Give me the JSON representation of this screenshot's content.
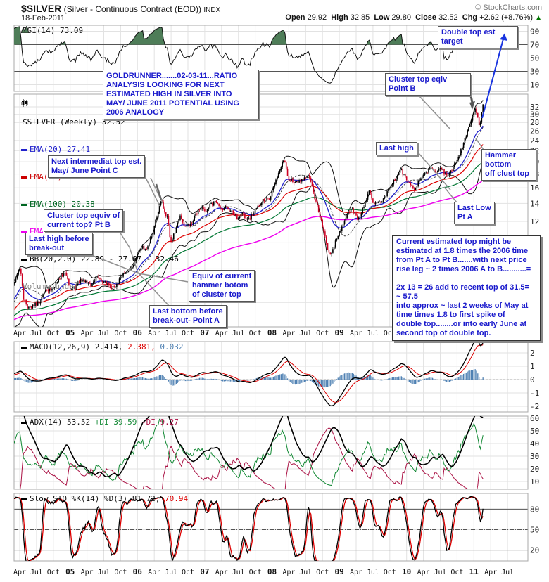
{
  "header": {
    "symbol": "$SILVER",
    "name": " (Silver - Continuous Contract (EOD)) ",
    "exchange": "INDX",
    "credit": "© StockCharts.com",
    "date": "18-Feb-2011",
    "quote": [
      {
        "label": "Open",
        "value": " 29.92  "
      },
      {
        "label": "High",
        "value": " 32.85  "
      },
      {
        "label": "Low",
        "value": " 29.80  "
      },
      {
        "label": "Close",
        "value": " 32.52  "
      },
      {
        "label": "Chg",
        "value": " +2.62 (+8.76%) "
      }
    ],
    "chg_arrow": "▲"
  },
  "legends": {
    "rsi": "RSI(14) 73.09",
    "price_lines": [
      {
        "label": "$SILVER (Weekly) 32.52",
        "color": "#000000"
      },
      {
        "label": "EMA(20) 27.41",
        "color": "#2222cc"
      },
      {
        "label": "EMA(50) 23.56",
        "color": "#cc0000"
      },
      {
        "label": "EMA(100) 20.38",
        "color": "#006622"
      },
      {
        "label": "EMA(200) 17.27",
        "color": "#ee00ee"
      },
      {
        "label": "BB(20,2.0) 22.89 - 27.67 - 32.46",
        "color": "#000000"
      },
      {
        "label": "Volume undef",
        "color": "#888888"
      }
    ],
    "macd": {
      "black": "MACD(12,26,9) 2.414,",
      "red": " 2.381,",
      "blue": " 0.032"
    },
    "adx": {
      "black": "ADX(14) 53.52",
      "green": " +DI 39.59",
      "maroon": " -DI 9.27"
    },
    "sto": {
      "black": "Slow STO %K(14) %D(3) 81.72,",
      "red": " 70.94"
    }
  },
  "axis": {
    "rsi_ticks": [
      "90",
      "70",
      "50",
      "30",
      "10"
    ],
    "price_ticks": [
      "32",
      "30",
      "28",
      "26",
      "24",
      "22",
      "20",
      "18",
      "16",
      "14",
      "12"
    ],
    "macd_ticks": [
      "2",
      "1",
      "0",
      "-1",
      "-2"
    ],
    "adx_ticks": [
      "60",
      "50",
      "40",
      "30",
      "20",
      "10"
    ],
    "sto_ticks": [
      "80",
      "50",
      "20"
    ],
    "x_labels": [
      "Apr",
      "Jul",
      "Oct",
      "05",
      "Apr",
      "Jul",
      "Oct",
      "06",
      "Apr",
      "Jul",
      "Oct",
      "07",
      "Apr",
      "Jul",
      "Oct",
      "08",
      "Apr",
      "Jul",
      "Oct",
      "09",
      "Apr",
      "Jul",
      "Oct",
      "10",
      "Apr",
      "Jul",
      "Oct",
      "11",
      "Apr",
      "Jul"
    ]
  },
  "annotations": {
    "goldrunner": {
      "text": "GOLDRUNNER.......02-03-11...RATIO\nANALYSIS LOOKING FOR NEXT\nESTIMATED HIGH IN SILVER INTO\nMAY/ JUNE 2011 POTENTIAL USING\n2006 ANALOGY"
    },
    "double_top": {
      "text": "Double top est\ntarget"
    },
    "cluster_top_b": {
      "text": "Cluster top eqiv\nPoint B"
    },
    "last_high_right": {
      "text": "Last high"
    },
    "hammer_bottom": {
      "text": "Hammer\nbottom\noff clust top"
    },
    "last_low": {
      "text": "Last Low\nPt A"
    },
    "next_intermediate": {
      "text": "Next intermediat top est.\nMay/ June Point C"
    },
    "cluster_top_equiv": {
      "text": "Cluster top equiv of\ncurrent top? Pt B"
    },
    "last_high_breakout": {
      "text": "Last high before\nbreak-out"
    },
    "equiv_hammer": {
      "text": "Equiv of current\nhammer botom\nof cluster top"
    },
    "last_bottom": {
      "text": "Last bottom before\nbreak-out- Point A"
    },
    "big_analysis": {
      "text": "Current estimated top might be\nestimated at 1.8 times the 2006 time\nfrom Pt A to Pt B.......with next price\nrise leg ~ 2 times 2006 A to B...........=\n\n2x 13 = 26 add to recent top of 31.5=\n~ 57.5\ninto approx ~ last 2 weeks of May at\ntime times 1.8 to first spike of\ndouble top........or into early June at\nsecond top of double top."
    }
  },
  "chart_data": {
    "type": "candlestick",
    "title": "$SILVER Silver Continuous Contract (EOD) Weekly, Feb-2004 to 18-Feb-2011, log price scale",
    "x_unit": "decimal_year",
    "x_range": [
      2004.17,
      2011.8
    ],
    "price_ylim_log": [
      4.9,
      35.7
    ],
    "ohlc_last": {
      "open": 29.92,
      "high": 32.85,
      "low": 29.8,
      "close": 32.52,
      "chg": 2.62,
      "chg_pct": 8.76
    },
    "price_anchors_t_close": [
      [
        2003.5,
        4.95
      ],
      [
        2003.62,
        5.1
      ],
      [
        2003.75,
        5.15
      ],
      [
        2003.85,
        5.3
      ],
      [
        2003.95,
        5.7
      ],
      [
        2004.04,
        6.3
      ],
      [
        2004.12,
        6.7
      ],
      [
        2004.2,
        7.4
      ],
      [
        2004.26,
        8.1
      ],
      [
        2004.3,
        6.3
      ],
      [
        2004.36,
        5.7
      ],
      [
        2004.45,
        5.85
      ],
      [
        2004.54,
        6.0
      ],
      [
        2004.62,
        6.6
      ],
      [
        2004.71,
        6.7
      ],
      [
        2004.79,
        7.0
      ],
      [
        2004.87,
        7.6
      ],
      [
        2004.93,
        7.9
      ],
      [
        2004.99,
        6.8
      ],
      [
        2005.08,
        6.75
      ],
      [
        2005.16,
        7.3
      ],
      [
        2005.24,
        7.2
      ],
      [
        2005.32,
        6.95
      ],
      [
        2005.4,
        7.5
      ],
      [
        2005.49,
        7.1
      ],
      [
        2005.57,
        7.0
      ],
      [
        2005.66,
        6.85
      ],
      [
        2005.74,
        7.4
      ],
      [
        2005.82,
        7.75
      ],
      [
        2005.9,
        7.9
      ],
      [
        2005.98,
        8.8
      ],
      [
        2006.06,
        9.7
      ],
      [
        2006.14,
        9.5
      ],
      [
        2006.22,
        10.6
      ],
      [
        2006.3,
        12.8
      ],
      [
        2006.36,
        14.5
      ],
      [
        2006.4,
        13.0
      ],
      [
        2006.45,
        12.3
      ],
      [
        2006.49,
        9.9
      ],
      [
        2006.55,
        10.8
      ],
      [
        2006.63,
        12.5
      ],
      [
        2006.71,
        11.5
      ],
      [
        2006.79,
        11.6
      ],
      [
        2006.87,
        12.8
      ],
      [
        2006.95,
        13.6
      ],
      [
        2007.0,
        12.9
      ],
      [
        2007.08,
        13.8
      ],
      [
        2007.16,
        14.1
      ],
      [
        2007.24,
        13.3
      ],
      [
        2007.32,
        13.5
      ],
      [
        2007.4,
        13.0
      ],
      [
        2007.48,
        12.4
      ],
      [
        2007.56,
        12.9
      ],
      [
        2007.64,
        12.0
      ],
      [
        2007.72,
        12.8
      ],
      [
        2007.8,
        13.8
      ],
      [
        2007.88,
        14.5
      ],
      [
        2007.96,
        14.6
      ],
      [
        2008.04,
        16.4
      ],
      [
        2008.12,
        18.9
      ],
      [
        2008.18,
        20.6
      ],
      [
        2008.23,
        17.5
      ],
      [
        2008.31,
        16.9
      ],
      [
        2008.39,
        16.8
      ],
      [
        2008.47,
        17.4
      ],
      [
        2008.55,
        17.9
      ],
      [
        2008.61,
        15.4
      ],
      [
        2008.69,
        13.1
      ],
      [
        2008.77,
        11.0
      ],
      [
        2008.83,
        9.3
      ],
      [
        2008.88,
        9.0
      ],
      [
        2008.96,
        10.4
      ],
      [
        2009.04,
        11.4
      ],
      [
        2009.12,
        13.0
      ],
      [
        2009.2,
        13.2
      ],
      [
        2009.28,
        12.3
      ],
      [
        2009.36,
        13.5
      ],
      [
        2009.44,
        15.5
      ],
      [
        2009.52,
        13.9
      ],
      [
        2009.6,
        14.2
      ],
      [
        2009.68,
        14.7
      ],
      [
        2009.76,
        16.3
      ],
      [
        2009.84,
        17.3
      ],
      [
        2009.9,
        18.7
      ],
      [
        2009.97,
        17.8
      ],
      [
        2010.05,
        16.6
      ],
      [
        2010.12,
        15.9
      ],
      [
        2010.2,
        17.2
      ],
      [
        2010.28,
        18.2
      ],
      [
        2010.36,
        18.7
      ],
      [
        2010.44,
        18.3
      ],
      [
        2010.52,
        18.8
      ],
      [
        2010.58,
        17.9
      ],
      [
        2010.66,
        18.4
      ],
      [
        2010.72,
        19.6
      ],
      [
        2010.79,
        21.4
      ],
      [
        2010.85,
        23.5
      ],
      [
        2010.9,
        25.6
      ],
      [
        2010.94,
        27.5
      ],
      [
        2010.98,
        29.5
      ],
      [
        2011.01,
        30.9
      ],
      [
        2011.035,
        31.2
      ],
      [
        2011.06,
        28.6
      ],
      [
        2011.08,
        26.9
      ],
      [
        2011.1,
        28.3
      ],
      [
        2011.12,
        30.8
      ],
      [
        2011.135,
        32.5
      ]
    ],
    "overlays_last": {
      "ema20": 27.41,
      "ema50": 23.56,
      "ema100": 20.38,
      "ema200": 17.27,
      "bb_lower": 22.89,
      "bb_mid": 27.67,
      "bb_upper": 32.46
    },
    "indicator_panels": [
      {
        "name": "RSI(14)",
        "last": 73.09,
        "ticks": [
          90,
          70,
          50,
          30,
          10
        ],
        "overbought": 70,
        "oversold": 30,
        "derived_from_price": true
      },
      {
        "name": "MACD(12,26,9)",
        "last": [
          2.414,
          2.381,
          0.032
        ],
        "ticks": [
          2,
          1,
          0,
          -1,
          -2
        ],
        "derived_from_price": true
      },
      {
        "name": "ADX(14)",
        "last": {
          "adx": 53.52,
          "plus_di": 39.59,
          "minus_di": 9.27
        },
        "ticks": [
          60,
          50,
          40,
          30,
          20,
          10
        ],
        "derived_from_price": true
      },
      {
        "name": "Slow STO %K(14) %D(3)",
        "last": [
          81.72,
          70.94
        ],
        "ticks": [
          80,
          50,
          20
        ],
        "derived_from_price": true
      }
    ],
    "colors": {
      "up_candle": "#000000",
      "down_candle": "#cc0022",
      "ema20": "#2222cc",
      "ema50": "#dd0000",
      "ema100": "#007733",
      "ema200": "#ee00ee",
      "bb": "#111111",
      "macd_hist": "#4f81b3",
      "plus_di": "#118833",
      "minus_di": "#aa1144",
      "rsi_fill": "#4e7d58",
      "annotation_blue": "#1a1acc",
      "projection_arrow": "#1a35e0"
    },
    "legend_position": "top-left",
    "grid": true
  }
}
